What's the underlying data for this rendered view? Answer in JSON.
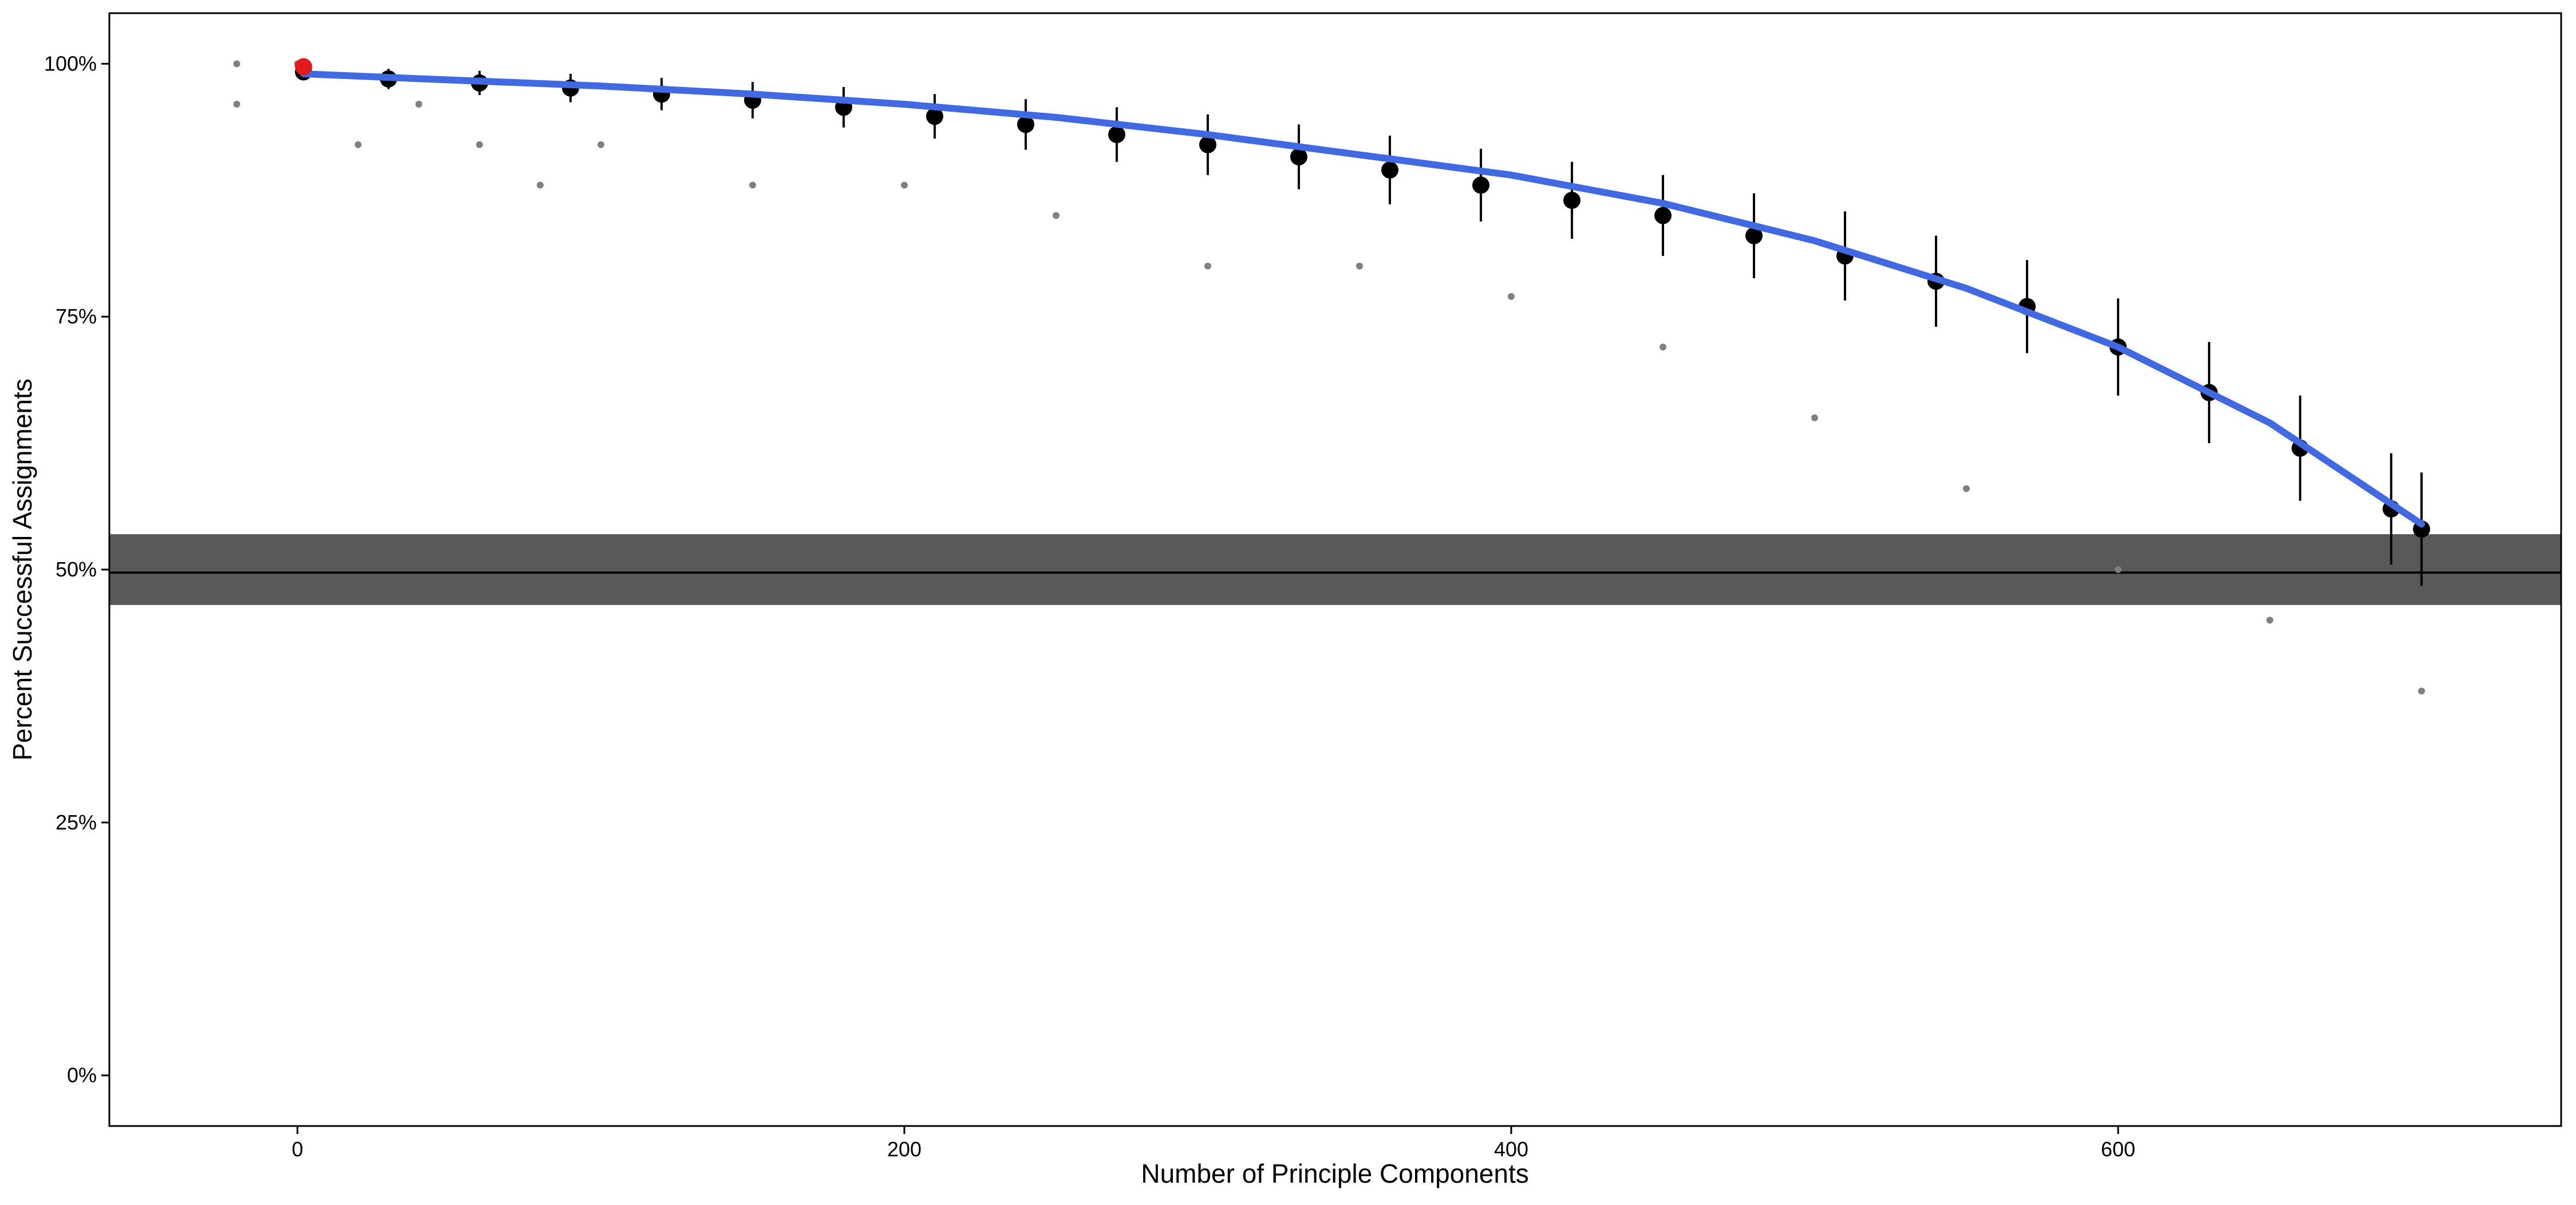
{
  "chart_data": {
    "type": "scatter",
    "title": "",
    "xlabel": "Number of Principle Components",
    "ylabel": "Percent Successful Assignments",
    "xlim": [
      -62,
      746
    ],
    "ylim": [
      -0.05,
      1.05
    ],
    "x_ticks": [
      {
        "value": 0,
        "label": "0"
      },
      {
        "value": 200,
        "label": "200"
      },
      {
        "value": 400,
        "label": "400"
      },
      {
        "value": 600,
        "label": "600"
      }
    ],
    "y_ticks": [
      {
        "value": 0,
        "label": "0%"
      },
      {
        "value": 0.25,
        "label": "25%"
      },
      {
        "value": 0.5,
        "label": "50%"
      },
      {
        "value": 0.75,
        "label": "75%"
      },
      {
        "value": 1.0,
        "label": "100%"
      }
    ],
    "grid": false,
    "legend": "none",
    "reference_band": {
      "ymin": 0.465,
      "ymax": 0.535,
      "color": "#595959"
    },
    "reference_line": {
      "y": 0.497,
      "color": "#000000"
    },
    "highlight_point": {
      "x": 2,
      "y": 0.997,
      "color": "#e41a1c"
    },
    "smooth_fit": {
      "color": "#4169e1",
      "x": [
        2,
        50,
        100,
        150,
        200,
        250,
        300,
        350,
        400,
        450,
        500,
        550,
        600,
        650,
        700
      ],
      "y": [
        0.99,
        0.984,
        0.978,
        0.97,
        0.96,
        0.947,
        0.93,
        0.91,
        0.89,
        0.862,
        0.825,
        0.778,
        0.72,
        0.645,
        0.545
      ]
    },
    "series": [
      {
        "name": "",
        "style": "mean-with-error-bar",
        "color": "#000000",
        "x": [
          2,
          30,
          60,
          90,
          120,
          150,
          180,
          210,
          240,
          270,
          300,
          330,
          360,
          390,
          420,
          450,
          480,
          510,
          540,
          570,
          600,
          630,
          660,
          690,
          700
        ],
        "y": [
          0.992,
          0.985,
          0.981,
          0.976,
          0.97,
          0.964,
          0.957,
          0.948,
          0.94,
          0.93,
          0.92,
          0.908,
          0.895,
          0.88,
          0.865,
          0.85,
          0.83,
          0.81,
          0.785,
          0.76,
          0.72,
          0.675,
          0.62,
          0.56,
          0.54
        ],
        "error": [
          0.008,
          0.01,
          0.012,
          0.014,
          0.016,
          0.018,
          0.02,
          0.022,
          0.025,
          0.027,
          0.03,
          0.032,
          0.034,
          0.036,
          0.038,
          0.04,
          0.042,
          0.044,
          0.045,
          0.046,
          0.048,
          0.05,
          0.052,
          0.055,
          0.056
        ]
      },
      {
        "name": "",
        "style": "raw-points",
        "color": "#808080",
        "x": [
          -20,
          -20,
          0,
          20,
          40,
          60,
          80,
          100,
          150,
          200,
          250,
          300,
          350,
          400,
          450,
          500,
          550,
          600,
          650,
          700
        ],
        "y": [
          1.0,
          0.96,
          1.0,
          0.92,
          0.96,
          0.92,
          0.88,
          0.92,
          0.88,
          0.88,
          0.85,
          0.8,
          0.8,
          0.77,
          0.72,
          0.65,
          0.58,
          0.5,
          0.45,
          0.38
        ]
      }
    ]
  }
}
